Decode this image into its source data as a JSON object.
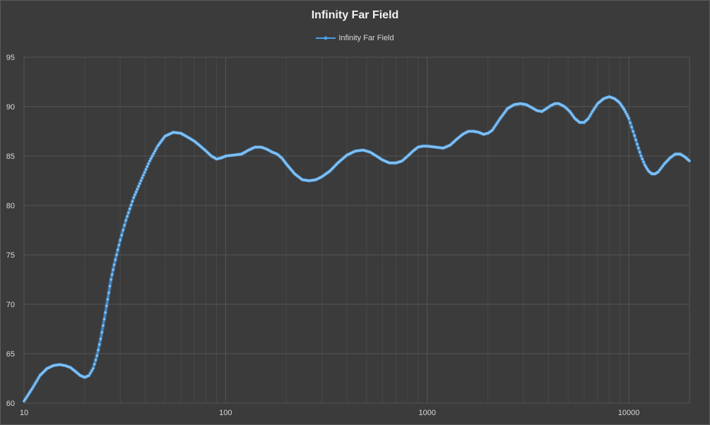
{
  "colors": {
    "background": "#3b3b3b",
    "grid_major": "#565656",
    "grid_minor": "#484848",
    "series": "#4a9eea",
    "text": "#d9d9d9"
  },
  "chart_data": {
    "type": "scatter",
    "title": "Infinity Far Field",
    "xscale": "log",
    "xlim": [
      10,
      20000
    ],
    "ylim": [
      60,
      95
    ],
    "x_ticks": [
      10,
      100,
      1000,
      10000
    ],
    "x_tick_labels": [
      "10",
      "100",
      "1000",
      "10000"
    ],
    "y_ticks": [
      60,
      65,
      70,
      75,
      80,
      85,
      90,
      95
    ],
    "y_tick_labels": [
      "60",
      "65",
      "70",
      "75",
      "80",
      "85",
      "90",
      "95"
    ],
    "grid": true,
    "minor_grid": true,
    "legend_position": "top-center",
    "series": [
      {
        "name": "Infinity Far Field",
        "marker": "circle",
        "points": [
          [
            10,
            60.2
          ],
          [
            11,
            61.5
          ],
          [
            12,
            62.8
          ],
          [
            13,
            63.5
          ],
          [
            14,
            63.8
          ],
          [
            15,
            63.9
          ],
          [
            16,
            63.8
          ],
          [
            17,
            63.6
          ],
          [
            18,
            63.2
          ],
          [
            19,
            62.8
          ],
          [
            20,
            62.6
          ],
          [
            21,
            62.8
          ],
          [
            22,
            63.5
          ],
          [
            23,
            64.8
          ],
          [
            24,
            66.5
          ],
          [
            25,
            68.5
          ],
          [
            26,
            70.5
          ],
          [
            27,
            72.5
          ],
          [
            28,
            74.0
          ],
          [
            30,
            76.5
          ],
          [
            32,
            78.5
          ],
          [
            35,
            80.8
          ],
          [
            38,
            82.5
          ],
          [
            42,
            84.5
          ],
          [
            46,
            86.0
          ],
          [
            50,
            87.0
          ],
          [
            55,
            87.4
          ],
          [
            60,
            87.3
          ],
          [
            65,
            86.9
          ],
          [
            70,
            86.5
          ],
          [
            75,
            86.0
          ],
          [
            80,
            85.5
          ],
          [
            85,
            85.0
          ],
          [
            90,
            84.7
          ],
          [
            95,
            84.8
          ],
          [
            100,
            85.0
          ],
          [
            110,
            85.1
          ],
          [
            120,
            85.2
          ],
          [
            130,
            85.6
          ],
          [
            140,
            85.9
          ],
          [
            150,
            85.9
          ],
          [
            160,
            85.7
          ],
          [
            170,
            85.4
          ],
          [
            180,
            85.2
          ],
          [
            190,
            84.8
          ],
          [
            200,
            84.2
          ],
          [
            220,
            83.2
          ],
          [
            240,
            82.6
          ],
          [
            260,
            82.5
          ],
          [
            280,
            82.6
          ],
          [
            300,
            82.9
          ],
          [
            330,
            83.5
          ],
          [
            360,
            84.3
          ],
          [
            400,
            85.1
          ],
          [
            440,
            85.5
          ],
          [
            480,
            85.6
          ],
          [
            520,
            85.4
          ],
          [
            560,
            85.0
          ],
          [
            600,
            84.6
          ],
          [
            650,
            84.3
          ],
          [
            700,
            84.3
          ],
          [
            750,
            84.5
          ],
          [
            800,
            85.0
          ],
          [
            850,
            85.5
          ],
          [
            900,
            85.9
          ],
          [
            950,
            86.0
          ],
          [
            1000,
            86.0
          ],
          [
            1100,
            85.9
          ],
          [
            1200,
            85.8
          ],
          [
            1300,
            86.1
          ],
          [
            1400,
            86.7
          ],
          [
            1500,
            87.2
          ],
          [
            1600,
            87.5
          ],
          [
            1700,
            87.5
          ],
          [
            1800,
            87.4
          ],
          [
            1900,
            87.2
          ],
          [
            2000,
            87.3
          ],
          [
            2100,
            87.6
          ],
          [
            2200,
            88.2
          ],
          [
            2300,
            88.8
          ],
          [
            2400,
            89.3
          ],
          [
            2500,
            89.8
          ],
          [
            2700,
            90.2
          ],
          [
            2900,
            90.3
          ],
          [
            3100,
            90.2
          ],
          [
            3300,
            89.9
          ],
          [
            3500,
            89.6
          ],
          [
            3700,
            89.5
          ],
          [
            3900,
            89.8
          ],
          [
            4100,
            90.1
          ],
          [
            4300,
            90.3
          ],
          [
            4500,
            90.3
          ],
          [
            4800,
            90.0
          ],
          [
            5100,
            89.5
          ],
          [
            5400,
            88.8
          ],
          [
            5700,
            88.4
          ],
          [
            6000,
            88.4
          ],
          [
            6300,
            88.8
          ],
          [
            6600,
            89.5
          ],
          [
            7000,
            90.3
          ],
          [
            7500,
            90.8
          ],
          [
            8000,
            91.0
          ],
          [
            8500,
            90.8
          ],
          [
            9000,
            90.4
          ],
          [
            9500,
            89.7
          ],
          [
            10000,
            88.8
          ],
          [
            10500,
            87.5
          ],
          [
            11000,
            86.2
          ],
          [
            11500,
            85.0
          ],
          [
            12000,
            84.1
          ],
          [
            12500,
            83.5
          ],
          [
            13000,
            83.2
          ],
          [
            13500,
            83.2
          ],
          [
            14000,
            83.4
          ],
          [
            14500,
            83.8
          ],
          [
            15000,
            84.2
          ],
          [
            16000,
            84.8
          ],
          [
            17000,
            85.2
          ],
          [
            18000,
            85.2
          ],
          [
            19000,
            84.9
          ],
          [
            20000,
            84.5
          ]
        ]
      }
    ]
  }
}
